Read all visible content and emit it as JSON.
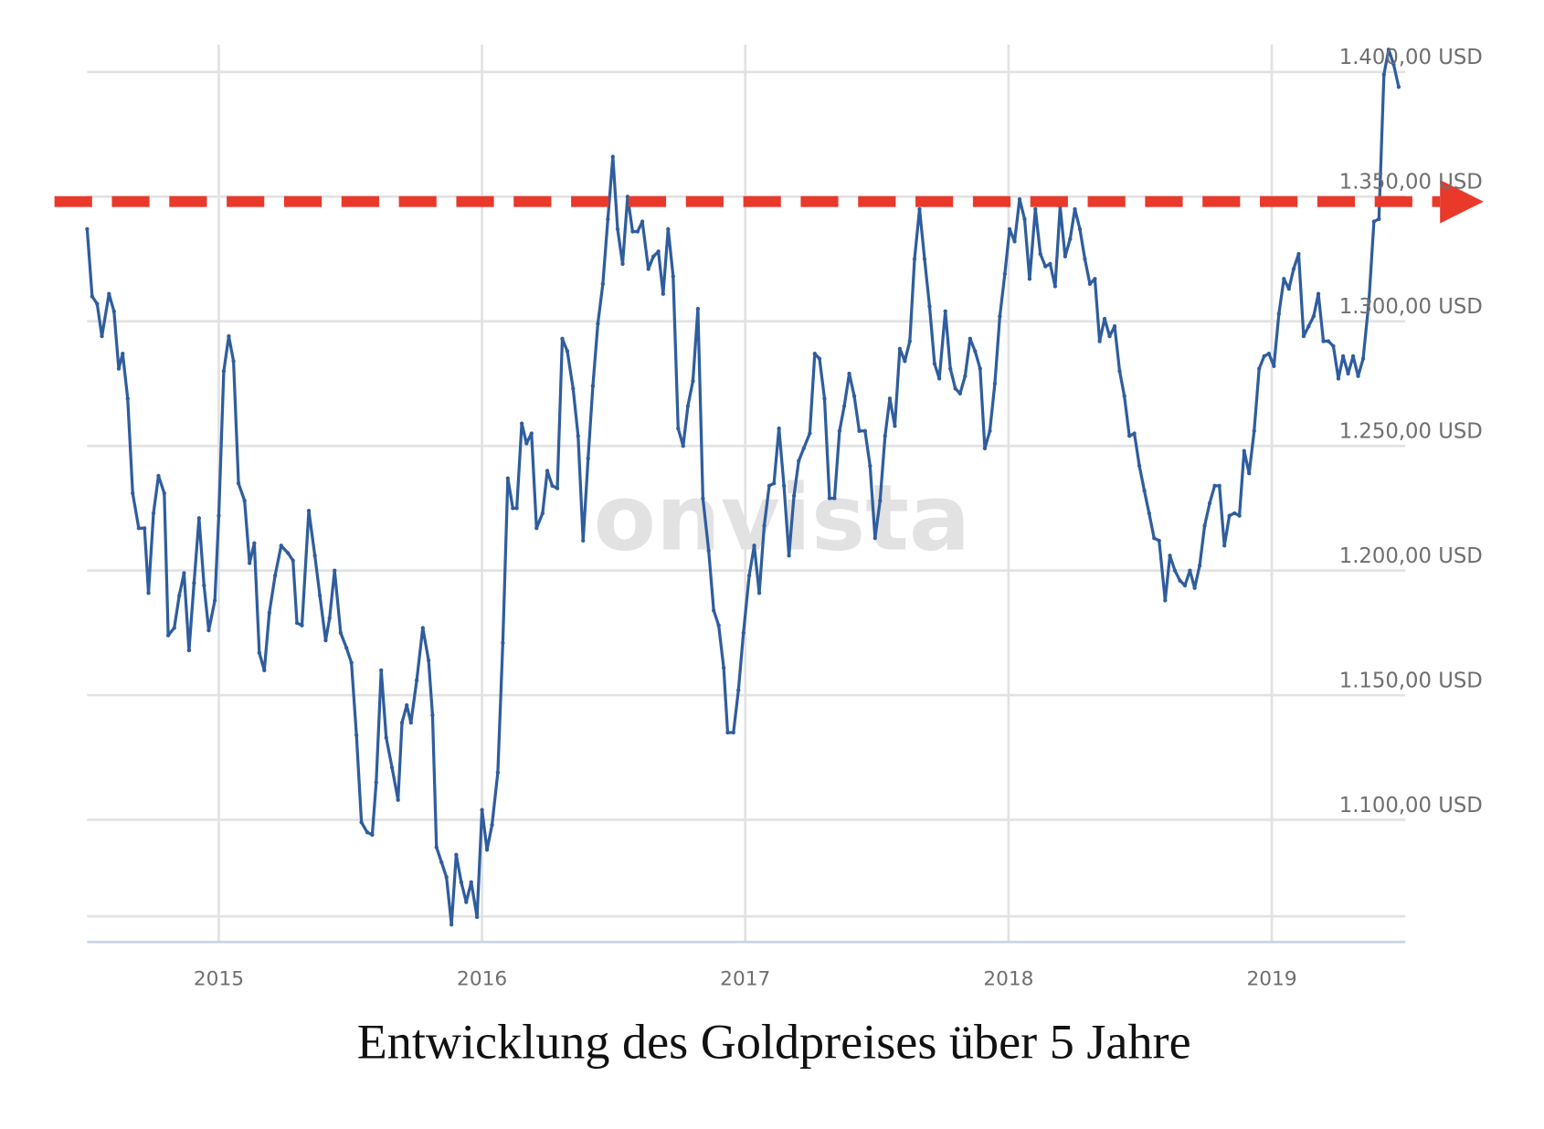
{
  "chart_data": {
    "type": "line",
    "title": "Entwicklung des Goldpreises über 5 Jahre",
    "watermark": "onvista",
    "xlim": [
      2014.5,
      2019.5
    ],
    "xticks": [
      2015,
      2016,
      2017,
      2018,
      2019
    ],
    "ylim": [
      1051,
      1413
    ],
    "yticks": [
      {
        "value": 1100,
        "label": "1.100,00 USD"
      },
      {
        "value": 1150,
        "label": "1.150,00 USD"
      },
      {
        "value": 1200,
        "label": "1.200,00 USD"
      },
      {
        "value": 1250,
        "label": "1.250,00 USD"
      },
      {
        "value": 1300,
        "label": "1.300,00 USD"
      },
      {
        "value": 1350,
        "label": "1.350,00 USD"
      },
      {
        "value": 1400,
        "label": "1.400,00 USD"
      }
    ],
    "grid": true,
    "reference_line": {
      "value": 1348,
      "color": "#e8392b"
    },
    "x": [
      2014.5,
      2014.519,
      2014.538,
      2014.556,
      2014.583,
      2014.602,
      2014.62,
      2014.635,
      2014.654,
      2014.673,
      2014.696,
      2014.718,
      2014.733,
      2014.752,
      2014.771,
      2014.793,
      2014.808,
      2014.831,
      2014.85,
      2014.868,
      2014.887,
      2014.906,
      2014.925,
      2014.944,
      2014.962,
      2014.985,
      2015.0,
      2015.019,
      2015.038,
      2015.056,
      2015.075,
      2015.098,
      2015.117,
      2015.135,
      2015.154,
      2015.173,
      2015.192,
      2015.214,
      2015.237,
      2015.263,
      2015.282,
      2015.297,
      2015.316,
      2015.342,
      2015.365,
      2015.384,
      2015.406,
      2015.421,
      2015.44,
      2015.463,
      2015.485,
      2015.504,
      2015.523,
      2015.542,
      2015.564,
      2015.583,
      2015.598,
      2015.617,
      2015.636,
      2015.658,
      2015.681,
      2015.696,
      2015.714,
      2015.73,
      2015.752,
      2015.775,
      2015.797,
      2015.812,
      2015.827,
      2015.846,
      2015.865,
      2015.884,
      2015.902,
      2015.921,
      2015.94,
      2015.959,
      2015.981,
      2016.0,
      2016.019,
      2016.038,
      2016.06,
      2016.079,
      2016.098,
      2016.117,
      2016.132,
      2016.151,
      2016.169,
      2016.188,
      2016.207,
      2016.23,
      2016.248,
      2016.267,
      2016.286,
      2016.305,
      2016.324,
      2016.346,
      2016.365,
      2016.384,
      2016.403,
      2016.421,
      2016.44,
      2016.459,
      2016.478,
      2016.497,
      2016.515,
      2016.534,
      2016.553,
      2016.572,
      2016.591,
      2016.609,
      2016.632,
      2016.651,
      2016.67,
      2016.688,
      2016.707,
      2016.726,
      2016.745,
      2016.764,
      2016.782,
      2016.801,
      2016.82,
      2016.839,
      2016.861,
      2016.88,
      2016.899,
      2016.918,
      2016.933,
      2016.955,
      2016.974,
      2016.993,
      2017.015,
      2017.034,
      2017.053,
      2017.072,
      2017.091,
      2017.109,
      2017.128,
      2017.147,
      2017.166,
      2017.185,
      2017.203,
      2017.222,
      2017.245,
      2017.264,
      2017.282,
      2017.301,
      2017.32,
      2017.339,
      2017.358,
      2017.376,
      2017.395,
      2017.414,
      2017.433,
      2017.455,
      2017.474,
      2017.493,
      2017.512,
      2017.531,
      2017.549,
      2017.568,
      2017.587,
      2017.606,
      2017.625,
      2017.643,
      2017.662,
      2017.681,
      2017.7,
      2017.719,
      2017.737,
      2017.76,
      2017.779,
      2017.798,
      2017.816,
      2017.835,
      2017.854,
      2017.873,
      2017.892,
      2017.91,
      2017.929,
      2017.948,
      2017.967,
      2017.986,
      2018.004,
      2018.023,
      2018.042,
      2018.061,
      2018.08,
      2018.102,
      2018.121,
      2018.14,
      2018.158,
      2018.177,
      2018.196,
      2018.215,
      2018.234,
      2018.252,
      2018.271,
      2018.29,
      2018.309,
      2018.328,
      2018.346,
      2018.365,
      2018.384,
      2018.403,
      2018.422,
      2018.44,
      2018.459,
      2018.478,
      2018.497,
      2018.516,
      2018.534,
      2018.553,
      2018.572,
      2018.595,
      2018.613,
      2018.632,
      2018.651,
      2018.67,
      2018.689,
      2018.707,
      2018.726,
      2018.745,
      2018.764,
      2018.783,
      2018.801,
      2018.82,
      2018.839,
      2018.858,
      2018.877,
      2018.895,
      2018.914,
      2018.933,
      2018.952,
      2018.971,
      2018.989,
      2019.008,
      2019.027,
      2019.046,
      2019.065,
      2019.083,
      2019.102,
      2019.121,
      2019.14,
      2019.159,
      2019.177,
      2019.196,
      2019.215,
      2019.234,
      2019.253,
      2019.271,
      2019.29,
      2019.309,
      2019.328,
      2019.347,
      2019.369,
      2019.388,
      2019.407,
      2019.426,
      2019.444,
      2019.463,
      2019.482
    ],
    "series": [
      {
        "name": "Gold",
        "color": "#2f5d9e",
        "values": [
          1337,
          1310,
          1307,
          1294,
          1311,
          1304,
          1281,
          1287,
          1269,
          1231,
          1217,
          1217,
          1191,
          1223,
          1238,
          1231,
          1174,
          1177,
          1190,
          1199,
          1168,
          1195,
          1221,
          1194,
          1176,
          1188,
          1222,
          1280,
          1294,
          1284,
          1235,
          1228,
          1203,
          1211,
          1167,
          1160,
          1183,
          1198,
          1210,
          1207,
          1204,
          1179,
          1178,
          1224,
          1206,
          1190,
          1172,
          1181,
          1200,
          1175,
          1169,
          1163,
          1134,
          1099,
          1095,
          1094,
          1115,
          1160,
          1133,
          1121,
          1108,
          1139,
          1146,
          1139,
          1156,
          1177,
          1164,
          1142,
          1089,
          1083,
          1077,
          1058,
          1086,
          1075,
          1067,
          1075,
          1061,
          1104,
          1088,
          1098,
          1119,
          1171,
          1237,
          1225,
          1225,
          1259,
          1251,
          1255,
          1217,
          1223,
          1240,
          1234,
          1233,
          1293,
          1288,
          1273,
          1254,
          1212,
          1245,
          1274,
          1299,
          1315,
          1341,
          1366,
          1337,
          1323,
          1350,
          1336,
          1336,
          1340,
          1321,
          1326,
          1328,
          1311,
          1337,
          1318,
          1257,
          1250,
          1266,
          1276,
          1305,
          1229,
          1208,
          1184,
          1178,
          1161,
          1135,
          1135,
          1152,
          1175,
          1198,
          1210,
          1191,
          1218,
          1234,
          1235,
          1257,
          1234,
          1206,
          1230,
          1244,
          1249,
          1255,
          1287,
          1285,
          1269,
          1229,
          1229,
          1256,
          1266,
          1279,
          1270,
          1256,
          1256,
          1242,
          1213,
          1228,
          1254,
          1269,
          1258,
          1289,
          1284,
          1292,
          1325,
          1345,
          1325,
          1306,
          1283,
          1277,
          1304,
          1281,
          1273,
          1271,
          1278,
          1293,
          1288,
          1281,
          1249,
          1256,
          1275,
          1302,
          1319,
          1337,
          1332,
          1349,
          1341,
          1317,
          1345,
          1327,
          1322,
          1323,
          1314,
          1346,
          1326,
          1333,
          1345,
          1337,
          1325,
          1315,
          1317,
          1292,
          1301,
          1294,
          1298,
          1280,
          1270,
          1254,
          1255,
          1242,
          1232,
          1223,
          1213,
          1212,
          1188,
          1206,
          1200,
          1196,
          1194,
          1200,
          1193,
          1202,
          1218,
          1227,
          1234,
          1234,
          1210,
          1222,
          1223,
          1222,
          1248,
          1239,
          1256,
          1281,
          1286,
          1287,
          1282,
          1303,
          1317,
          1313,
          1321,
          1327,
          1294,
          1298,
          1302,
          1311,
          1292,
          1292,
          1290,
          1277,
          1286,
          1279,
          1286,
          1278,
          1285,
          1308,
          1340,
          1341,
          1399,
          1409,
          1403,
          1394
        ]
      }
    ]
  }
}
